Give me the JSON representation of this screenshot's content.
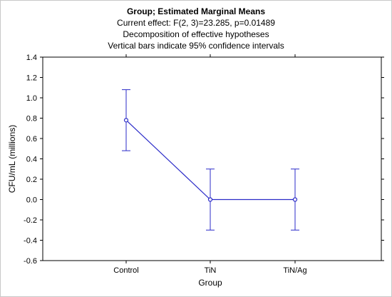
{
  "chart_data": {
    "type": "line",
    "title": "Group; Estimated Marginal Means",
    "subtitle_lines": [
      "Current effect: F(2, 3)=23.285, p=0.01489",
      "Decomposition of effective hypotheses",
      "Vertical bars indicate 95% confidence intervals"
    ],
    "xlabel": "Group",
    "ylabel": "CFU/mL (millions)",
    "categories": [
      "Control",
      "TiN",
      "TiN/Ag"
    ],
    "series": [
      {
        "values": [
          0.78,
          0.0,
          0.0
        ],
        "ci_lower": [
          0.48,
          -0.3,
          -0.3
        ],
        "ci_upper": [
          1.08,
          0.3,
          0.3
        ]
      }
    ],
    "ylim": [
      -0.6,
      1.4
    ],
    "yticks": [
      "1.4",
      "1.2",
      "1.0",
      "0.8",
      "0.6",
      "0.4",
      "0.2",
      "0.0",
      "-0.2",
      "-0.4",
      "-0.6"
    ],
    "ytick_values": [
      1.4,
      1.2,
      1.0,
      0.8,
      0.6,
      0.4,
      0.2,
      0.0,
      -0.2,
      -0.4,
      -0.6
    ],
    "grid": false,
    "colors": {
      "series": "#2b2bc8",
      "axis": "#000000",
      "frame": "#c8c8c8"
    }
  }
}
